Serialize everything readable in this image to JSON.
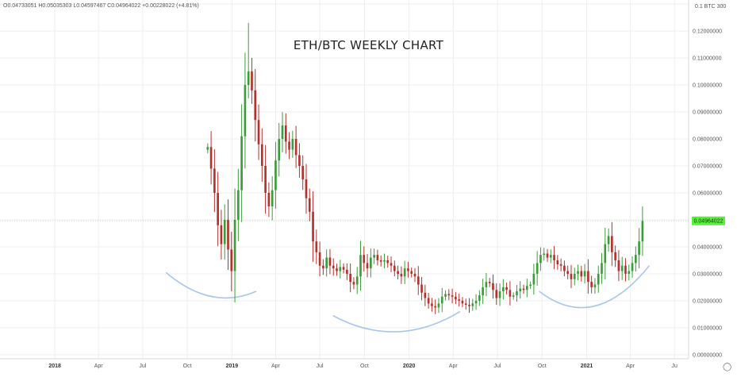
{
  "header": {
    "ohlc_readout": "O0.04733051 H0.05035303 L0.04597467 C0.04964022 +0.00228022 (+4.81%)",
    "scale_label": "0.1 BTC 300"
  },
  "colors": {
    "up": "#3a9d3a",
    "down": "#b5312d",
    "grid": "#eeeeee",
    "axis": "#d8d8d8",
    "arc": "#a9c6e8",
    "price_tag": "#5aef3c",
    "text": "#555555"
  },
  "chart_data": {
    "type": "candlestick",
    "title": "ETH/BTC WEEKLY CHART",
    "x_ticks": [
      "2018",
      "Apr",
      "Jul",
      "Oct",
      "2019",
      "Apr",
      "Jul",
      "Oct",
      "2020",
      "Apr",
      "Jul",
      "Oct",
      "2021",
      "Apr",
      "Ju"
    ],
    "x_tick_dates": [
      "2018-01-01",
      "2018-04-01",
      "2018-07-01",
      "2018-10-01",
      "2019-01-01",
      "2019-04-01",
      "2019-07-01",
      "2019-10-01",
      "2020-01-01",
      "2020-04-01",
      "2020-07-01",
      "2020-10-01",
      "2021-01-01",
      "2021-04-01",
      "2021-07-01"
    ],
    "x_range": [
      "2017-09-10",
      "2021-07-30"
    ],
    "y_ticks": [
      "0.1 BTC 300",
      "0.12000000",
      "0.11000000",
      "0.10000000",
      "0.09000000",
      "0.08000000",
      "0.07000000",
      "0.06000000",
      "0.05000000",
      "0.04000000",
      "0.03000000",
      "0.02000000",
      "0.01000000",
      "0.00000000"
    ],
    "y_tick_values": [
      0.13,
      0.12,
      0.11,
      0.1,
      0.09,
      0.08,
      0.07,
      0.06,
      0.05,
      0.04,
      0.03,
      0.02,
      0.01,
      0.0
    ],
    "ylim": [
      -0.0015,
      0.1315
    ],
    "last_price": 0.04964022,
    "last_price_label": "0.04964022",
    "closes": [
      0.077,
      0.069,
      0.06,
      0.048,
      0.041,
      0.05,
      0.039,
      0.031,
      0.05,
      0.061,
      0.081,
      0.1,
      0.105,
      0.098,
      0.087,
      0.078,
      0.07,
      0.06,
      0.055,
      0.061,
      0.072,
      0.08,
      0.085,
      0.079,
      0.076,
      0.08,
      0.074,
      0.07,
      0.065,
      0.058,
      0.053,
      0.042,
      0.038,
      0.033,
      0.032,
      0.036,
      0.033,
      0.032,
      0.031,
      0.0325,
      0.0315,
      0.03,
      0.027,
      0.026,
      0.029,
      0.037,
      0.034,
      0.032,
      0.036,
      0.037,
      0.035,
      0.0345,
      0.035,
      0.034,
      0.033,
      0.031,
      0.03,
      0.029,
      0.032,
      0.031,
      0.03,
      0.029,
      0.026,
      0.023,
      0.021,
      0.019,
      0.018,
      0.0175,
      0.019,
      0.0215,
      0.0225,
      0.022,
      0.0215,
      0.0205,
      0.02,
      0.019,
      0.0185,
      0.018,
      0.019,
      0.02,
      0.022,
      0.025,
      0.027,
      0.0265,
      0.024,
      0.021,
      0.0235,
      0.025,
      0.024,
      0.0215,
      0.022,
      0.0235,
      0.0245,
      0.024,
      0.0255,
      0.026,
      0.03,
      0.034,
      0.037,
      0.0375,
      0.036,
      0.037,
      0.035,
      0.0335,
      0.033,
      0.031,
      0.03,
      0.028,
      0.03,
      0.031,
      0.029,
      0.031,
      0.027,
      0.025,
      0.026,
      0.03,
      0.034,
      0.041,
      0.044,
      0.038,
      0.035,
      0.031,
      0.033,
      0.03,
      0.031,
      0.034,
      0.037,
      0.042,
      0.0496
    ]
  }
}
